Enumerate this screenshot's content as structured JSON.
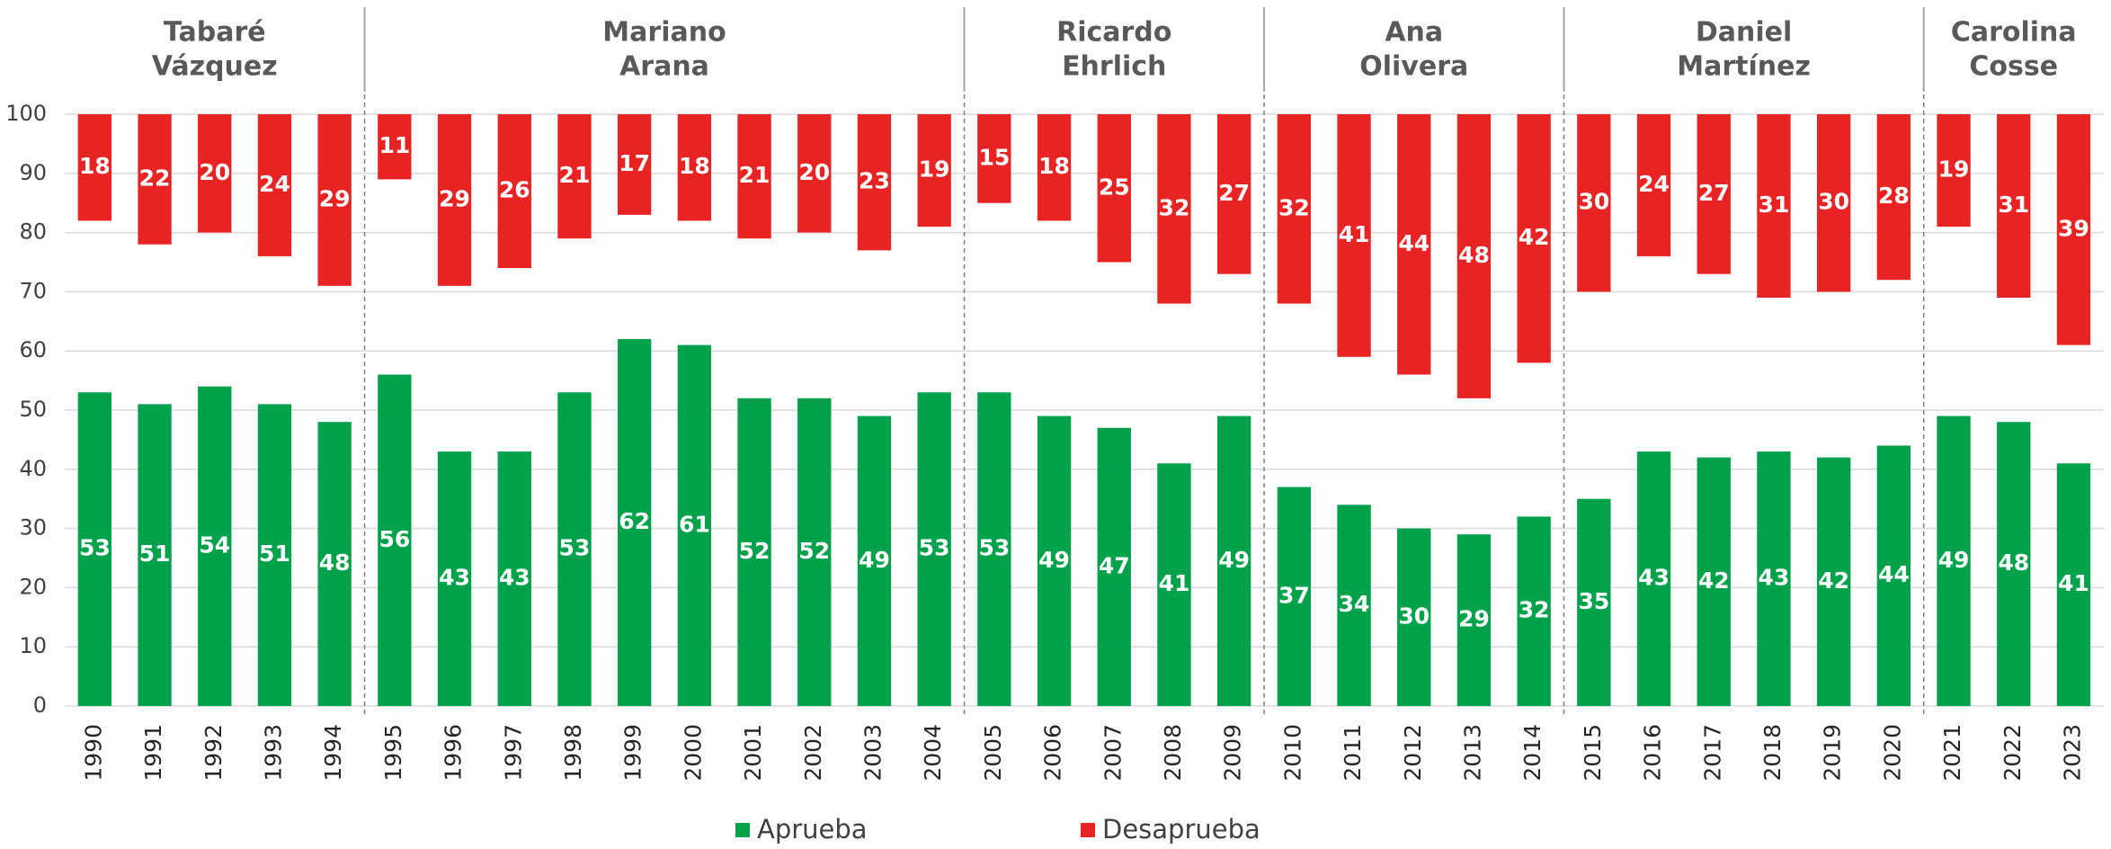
{
  "chart_data": {
    "type": "bar",
    "categories": [
      "1990",
      "1991",
      "1992",
      "1993",
      "1994",
      "1995",
      "1996",
      "1997",
      "1998",
      "1999",
      "2000",
      "2001",
      "2002",
      "2003",
      "2004",
      "2005",
      "2006",
      "2007",
      "2008",
      "2009",
      "2010",
      "2011",
      "2012",
      "2013",
      "2014",
      "2015",
      "2016",
      "2017",
      "2018",
      "2019",
      "2020",
      "2021",
      "2022",
      "2023"
    ],
    "series": [
      {
        "name": "Aprueba",
        "color": "#00a14b",
        "values": [
          53,
          51,
          54,
          51,
          48,
          56,
          43,
          43,
          53,
          62,
          61,
          52,
          52,
          49,
          53,
          53,
          49,
          47,
          41,
          49,
          37,
          34,
          30,
          29,
          32,
          35,
          43,
          42,
          43,
          42,
          44,
          49,
          48,
          41
        ]
      },
      {
        "name": "Desaprueba",
        "color": "#e82323",
        "hang_from": 100,
        "values": [
          18,
          22,
          20,
          24,
          29,
          11,
          29,
          26,
          21,
          17,
          18,
          21,
          20,
          23,
          19,
          15,
          18,
          25,
          32,
          27,
          32,
          41,
          44,
          48,
          42,
          30,
          24,
          27,
          31,
          30,
          28,
          19,
          31,
          39
        ]
      }
    ],
    "groups": [
      {
        "lines": [
          "Tabaré",
          "Vázquez"
        ],
        "span": 5
      },
      {
        "lines": [
          "Mariano",
          "Arana"
        ],
        "span": 10
      },
      {
        "lines": [
          "Ricardo",
          "Ehrlich"
        ],
        "span": 5
      },
      {
        "lines": [
          "Ana",
          "Olivera"
        ],
        "span": 5
      },
      {
        "lines": [
          "Daniel",
          "Martínez"
        ],
        "span": 6
      },
      {
        "lines": [
          "Carolina",
          "Cosse"
        ],
        "span": 3
      }
    ],
    "ylim": [
      0,
      100
    ],
    "yticks": [
      0,
      10,
      20,
      30,
      40,
      50,
      60,
      70,
      80,
      90,
      100
    ],
    "grid": true,
    "legend": "bottom"
  }
}
